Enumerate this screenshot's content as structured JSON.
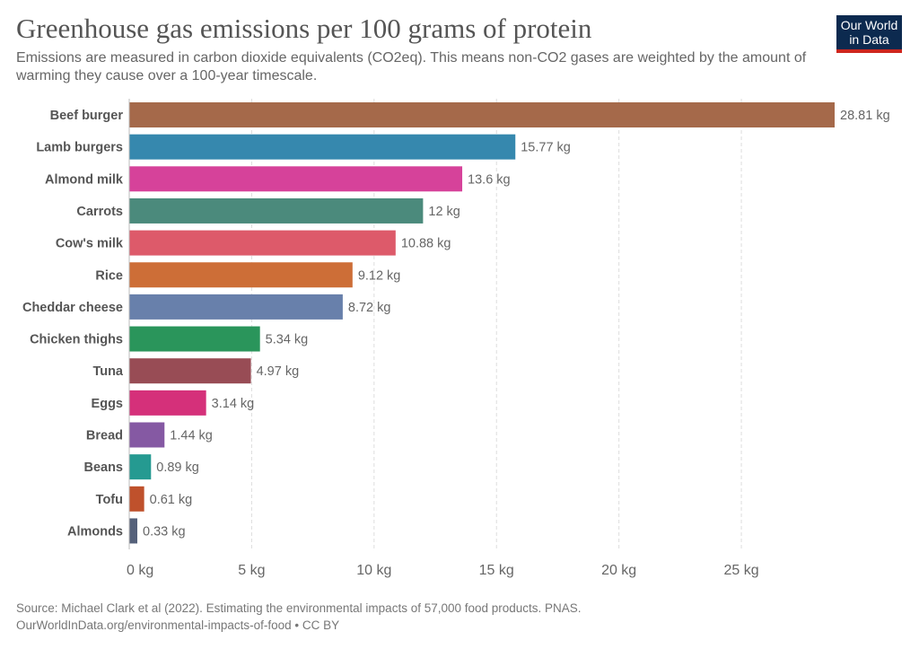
{
  "header": {
    "title": "Greenhouse gas emissions per 100 grams of protein",
    "subtitle": "Emissions are measured in carbon dioxide equivalents (CO2eq). This means non-CO2 gases are weighted by the amount of warming they cause over a 100-year timescale.",
    "logo": "Our World in Data"
  },
  "chart_data": {
    "type": "bar",
    "orientation": "horizontal",
    "categories": [
      "Beef burger",
      "Lamb burgers",
      "Almond milk",
      "Carrots",
      "Cow's milk",
      "Rice",
      "Cheddar cheese",
      "Chicken thighs",
      "Tuna",
      "Eggs",
      "Bread",
      "Beans",
      "Tofu",
      "Almonds"
    ],
    "values": [
      28.81,
      15.77,
      13.6,
      12,
      10.88,
      9.12,
      8.72,
      5.34,
      4.97,
      3.14,
      1.44,
      0.89,
      0.61,
      0.33
    ],
    "value_labels": [
      "28.81 kg",
      "15.77 kg",
      "13.6 kg",
      "12 kg",
      "10.88 kg",
      "9.12 kg",
      "8.72 kg",
      "5.34 kg",
      "4.97 kg",
      "3.14 kg",
      "1.44 kg",
      "0.89 kg",
      "0.61 kg",
      "0.33 kg"
    ],
    "colors": [
      "#a5694a",
      "#3688ae",
      "#d6429a",
      "#4b8a7c",
      "#dd5a6a",
      "#cd6e37",
      "#6880ab",
      "#2a955b",
      "#984c55",
      "#d5307a",
      "#8559a3",
      "#259a91",
      "#bf512c",
      "#55617a"
    ],
    "xticks": [
      0,
      5,
      10,
      15,
      20,
      25
    ],
    "xtick_labels": [
      "0 kg",
      "5 kg",
      "10 kg",
      "15 kg",
      "20 kg",
      "25 kg"
    ],
    "xlim": [
      0,
      28.81
    ],
    "grid": "vertical dashed"
  },
  "footer": {
    "source": "Source: Michael Clark et al (2022). Estimating the environmental impacts of 57,000 food products. PNAS.",
    "url": "OurWorldInData.org/environmental-impacts-of-food • CC BY"
  }
}
